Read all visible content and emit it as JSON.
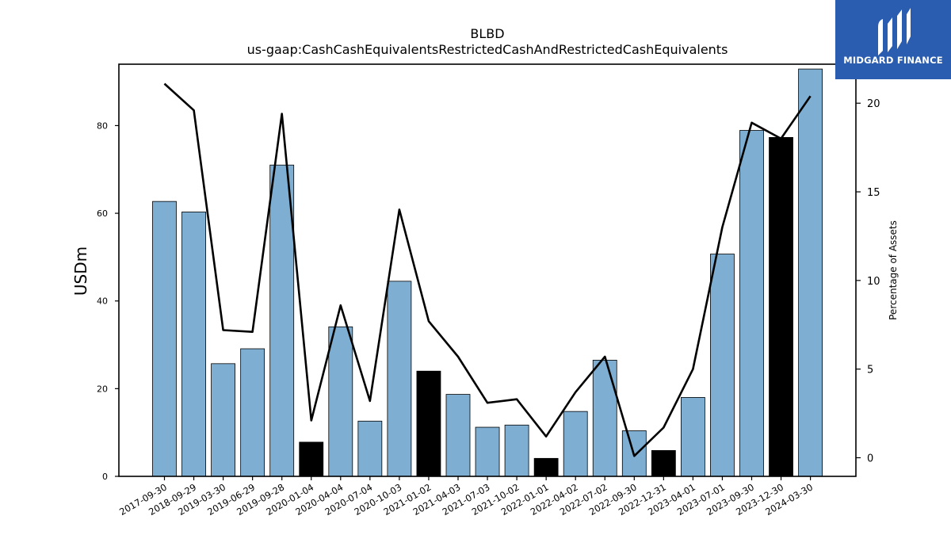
{
  "chart_data": {
    "type": "bar",
    "title": "BLBD",
    "subtitle": "us-gaap:CashCashEquivalentsRestrictedCashAndRestrictedCashEquivalents",
    "ylabel": "USDm",
    "y2label": "Percentage of Assets",
    "ylim": [
      0,
      94
    ],
    "y2lim": [
      -1.05,
      22.2
    ],
    "yticks": [
      0,
      20,
      40,
      60,
      80
    ],
    "y2ticks": [
      0,
      5,
      10,
      15,
      20
    ],
    "categories": [
      "2017-09-30",
      "2018-09-29",
      "2019-03-30",
      "2019-06-29",
      "2019-09-28",
      "2020-01-04",
      "2020-04-04",
      "2020-07-04",
      "2020-10-03",
      "2021-01-02",
      "2021-04-03",
      "2021-07-03",
      "2021-10-02",
      "2022-01-01",
      "2022-04-02",
      "2022-07-02",
      "2022-09-30",
      "2022-12-31",
      "2023-04-01",
      "2023-07-01",
      "2023-09-30",
      "2023-12-30",
      "2024-03-30"
    ],
    "series": [
      {
        "kind": "bar",
        "values": [
          62.7,
          60.3,
          25.7,
          29.1,
          71.0,
          7.8,
          34.1,
          12.6,
          44.5,
          24.0,
          18.7,
          11.2,
          11.7,
          4.1,
          14.8,
          26.5,
          10.4,
          5.9,
          18.0,
          50.7,
          78.9,
          77.3,
          92.9
        ],
        "highlight": [
          false,
          false,
          false,
          false,
          false,
          true,
          false,
          false,
          false,
          true,
          false,
          false,
          false,
          true,
          false,
          false,
          false,
          true,
          false,
          false,
          false,
          true,
          false
        ]
      },
      {
        "kind": "line",
        "axis": "right",
        "values": [
          21.1,
          19.6,
          7.2,
          7.1,
          19.4,
          2.1,
          8.6,
          3.2,
          14.0,
          7.7,
          5.7,
          3.1,
          3.3,
          1.2,
          3.7,
          5.7,
          0.1,
          1.7,
          5.0,
          13.0,
          18.9,
          18.0,
          20.4
        ]
      }
    ],
    "colors": {
      "bar": "#7eafd3",
      "bar_highlight": "#000000",
      "line": "#000000"
    },
    "grid": false,
    "legend": "none"
  },
  "logo": {
    "text": "MIDGARD FINANCE",
    "color": "#2a5db0"
  }
}
